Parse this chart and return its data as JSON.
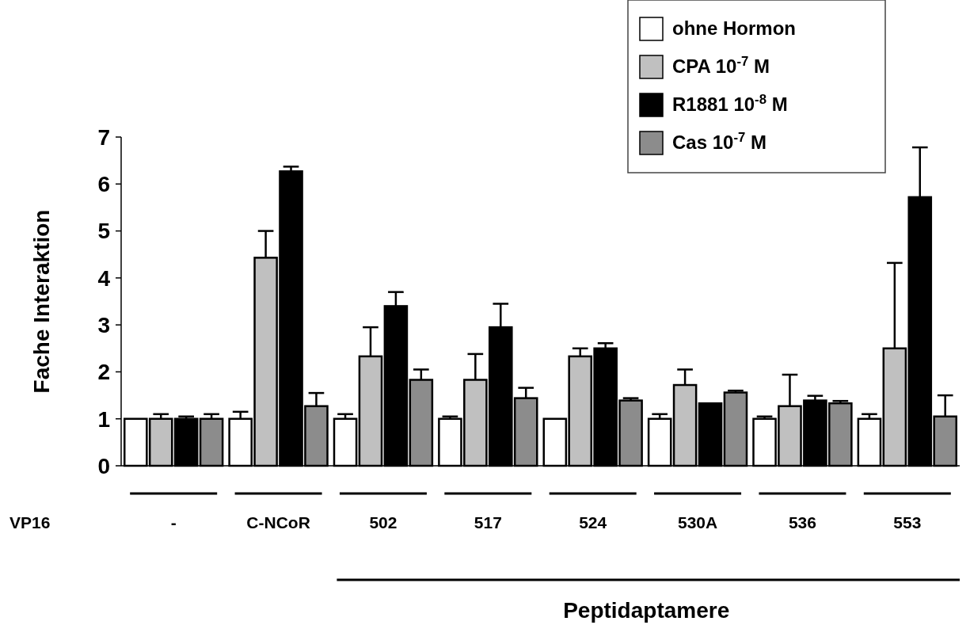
{
  "chart_data": {
    "type": "bar",
    "ylabel": "Fache Interaktion",
    "categories": [
      "-",
      "C-NCoR",
      "502",
      "517",
      "524",
      "530A",
      "536",
      "553"
    ],
    "series": [
      {
        "name": "ohne Hormon",
        "color": "#ffffff",
        "values": [
          1,
          1,
          1,
          1,
          1,
          1,
          1,
          1
        ],
        "errors": [
          null,
          [
            1,
            1.15
          ],
          [
            1,
            1.1
          ],
          [
            1,
            1.05
          ],
          null,
          [
            1,
            1.1
          ],
          [
            1,
            1.05
          ],
          [
            1,
            1.1
          ]
        ]
      },
      {
        "name": "CPA 10$^{-7}$ M",
        "color": "#c0c0c0",
        "values": [
          1,
          4.43,
          2.33,
          1.83,
          2.33,
          1.72,
          1.27,
          2.5
        ],
        "errors": [
          [
            1,
            1.1
          ],
          [
            4.43,
            5.0
          ],
          [
            2.33,
            2.95
          ],
          [
            1.83,
            2.38
          ],
          [
            2.33,
            2.5
          ],
          [
            1.72,
            2.05
          ],
          [
            1.27,
            1.94
          ],
          [
            2.5,
            4.32
          ]
        ]
      },
      {
        "name": "R1881 10$^{-8}$ M",
        "color": "#000000",
        "values": [
          1,
          6.27,
          3.4,
          2.95,
          2.5,
          1.33,
          1.39,
          5.72
        ],
        "errors": [
          [
            1,
            1.05
          ],
          [
            6.27,
            6.37
          ],
          [
            3.4,
            3.7
          ],
          [
            2.95,
            3.45
          ],
          [
            2.5,
            2.61
          ],
          null,
          [
            1.39,
            1.49
          ],
          [
            5.72,
            6.78
          ]
        ]
      },
      {
        "name": "Cas 10$^{-7}$ M",
        "color": "#8c8c8c",
        "values": [
          1,
          1.27,
          1.83,
          1.44,
          1.39,
          1.56,
          1.33,
          1.05
        ],
        "errors": [
          [
            1,
            1.1
          ],
          [
            1.27,
            1.55
          ],
          [
            1.83,
            2.05
          ],
          [
            1.44,
            1.66
          ],
          [
            1.39,
            1.44
          ],
          [
            1.56,
            1.6
          ],
          [
            1.33,
            1.38
          ],
          [
            1.05,
            1.5
          ]
        ]
      }
    ],
    "ylim": [
      0,
      7
    ],
    "yticks": [
      0,
      1,
      2,
      3,
      4,
      5,
      6,
      7
    ],
    "legend": "top right",
    "annotations": [
      "VP16",
      "Peptidaptamere"
    ]
  }
}
